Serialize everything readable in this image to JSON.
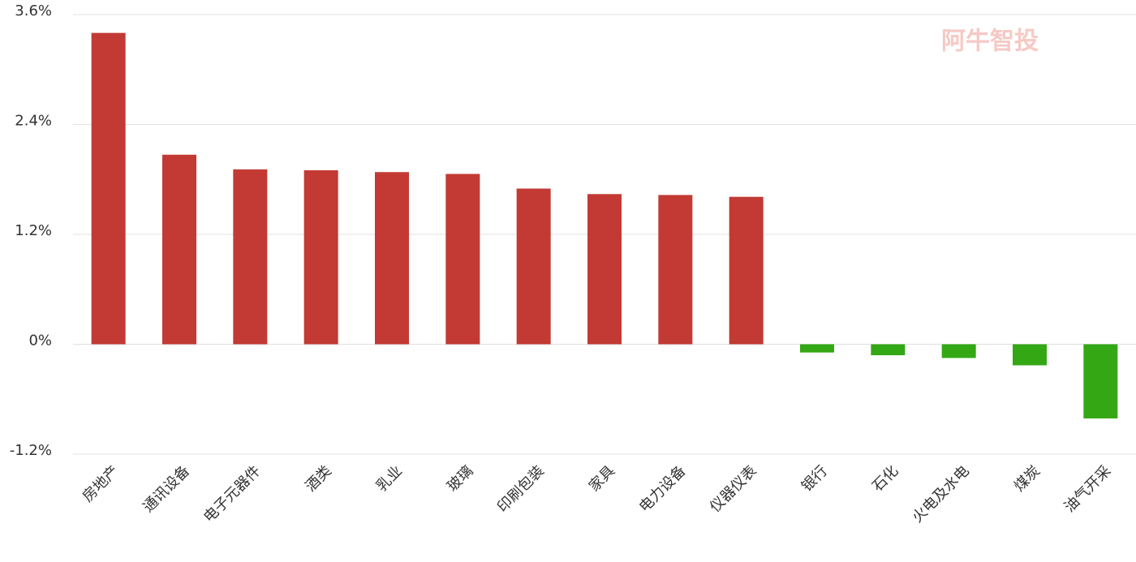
{
  "chart_data": {
    "type": "bar",
    "watermark": "阿牛智投",
    "categories": [
      "房地产",
      "通讯设备",
      "电子元器件",
      "酒类",
      "乳业",
      "玻璃",
      "印刷包装",
      "家具",
      "电力设备",
      "仪器仪表",
      "银行",
      "石化",
      "火电及水电",
      "煤炭",
      "油气开采"
    ],
    "values": [
      3.4,
      2.07,
      1.91,
      1.9,
      1.88,
      1.86,
      1.7,
      1.64,
      1.63,
      1.61,
      -0.09,
      -0.12,
      -0.15,
      -0.23,
      -0.81
    ],
    "positive_color": "#c23a33",
    "negative_color": "#33a814",
    "ylim": [
      -1.2,
      3.6
    ],
    "yticks": [
      {
        "value": -1.2,
        "label": "-1.2%"
      },
      {
        "value": 0,
        "label": "0%"
      },
      {
        "value": 1.2,
        "label": "1.2%"
      },
      {
        "value": 2.4,
        "label": "2.4%"
      },
      {
        "value": 3.6,
        "label": "3.6%"
      }
    ],
    "grid": true
  }
}
